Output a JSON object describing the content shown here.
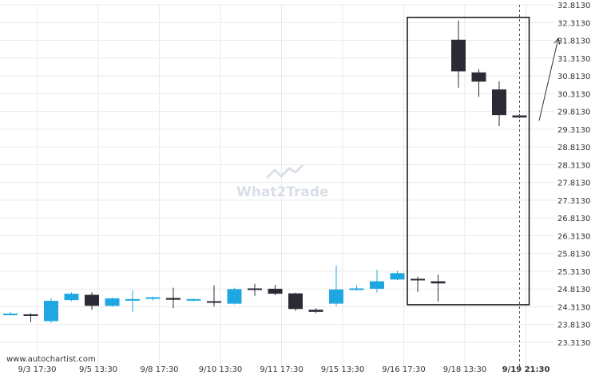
{
  "colors": {
    "bull": "#1ea7e1",
    "bear": "#2b2b36",
    "grid": "#e9e9e9",
    "text": "#333333",
    "box": "#111111",
    "watermark": "#d9dfe6"
  },
  "watermark": {
    "text_a": "What",
    "text_b": "2",
    "text_c": "Trade"
  },
  "source_text": "www.autochartist.com",
  "chart_data": {
    "type": "candlestick",
    "title": "",
    "y_ticks": [
      "32.8130",
      "32.3130",
      "31.8130",
      "31.3130",
      "30.8130",
      "30.3130",
      "29.8130",
      "29.3130",
      "28.8130",
      "28.3130",
      "27.8130",
      "27.3130",
      "26.8130",
      "26.3130",
      "25.8130",
      "25.3130",
      "24.8130",
      "24.3130",
      "23.8130",
      "23.3130"
    ],
    "ylim": [
      23.313,
      32.813
    ],
    "x_ticks": [
      {
        "label": "9/3 17:30",
        "index": 1
      },
      {
        "label": "9/5 13:30",
        "index": 4
      },
      {
        "label": "9/8 17:30",
        "index": 7
      },
      {
        "label": "9/10 13:30",
        "index": 10
      },
      {
        "label": "9/11 17:30",
        "index": 13
      },
      {
        "label": "9/15 13:30",
        "index": 16
      },
      {
        "label": "9/16 17:30",
        "index": 19
      },
      {
        "label": "9/18 13:30",
        "index": 22
      },
      {
        "label": "9/19 21:30",
        "index": 25,
        "bold": true
      }
    ],
    "candles": [
      {
        "o": 24.12,
        "h": 24.17,
        "l": 24.07,
        "c": 24.12
      },
      {
        "o": 24.1,
        "h": 24.13,
        "l": 23.88,
        "c": 24.06
      },
      {
        "o": 23.91,
        "h": 24.55,
        "l": 23.86,
        "c": 24.48
      },
      {
        "o": 24.5,
        "h": 24.72,
        "l": 24.47,
        "c": 24.68
      },
      {
        "o": 24.65,
        "h": 24.72,
        "l": 24.23,
        "c": 24.34
      },
      {
        "o": 24.34,
        "h": 24.58,
        "l": 24.32,
        "c": 24.55
      },
      {
        "o": 24.53,
        "h": 24.77,
        "l": 24.16,
        "c": 24.53
      },
      {
        "o": 24.54,
        "h": 24.6,
        "l": 24.49,
        "c": 24.58
      },
      {
        "o": 24.56,
        "h": 24.85,
        "l": 24.27,
        "c": 24.51
      },
      {
        "o": 24.52,
        "h": 24.54,
        "l": 24.46,
        "c": 24.53
      },
      {
        "o": 24.47,
        "h": 24.92,
        "l": 24.32,
        "c": 24.44
      },
      {
        "o": 24.4,
        "h": 24.85,
        "l": 24.38,
        "c": 24.81
      },
      {
        "o": 24.83,
        "h": 24.96,
        "l": 24.62,
        "c": 24.81
      },
      {
        "o": 24.82,
        "h": 24.93,
        "l": 24.64,
        "c": 24.68
      },
      {
        "o": 24.69,
        "h": 24.71,
        "l": 24.2,
        "c": 24.25
      },
      {
        "o": 24.23,
        "h": 24.27,
        "l": 24.13,
        "c": 24.17
      },
      {
        "o": 24.4,
        "h": 25.47,
        "l": 24.33,
        "c": 24.8
      },
      {
        "o": 24.82,
        "h": 24.92,
        "l": 24.77,
        "c": 24.83
      },
      {
        "o": 24.82,
        "h": 25.35,
        "l": 24.71,
        "c": 25.03
      },
      {
        "o": 25.08,
        "h": 25.33,
        "l": 25.06,
        "c": 25.26
      },
      {
        "o": 25.1,
        "h": 25.16,
        "l": 24.73,
        "c": 25.07
      },
      {
        "o": 25.03,
        "h": 25.22,
        "l": 24.46,
        "c": 24.97
      },
      {
        "o": 31.83,
        "h": 32.37,
        "l": 30.48,
        "c": 30.94
      },
      {
        "o": 30.91,
        "h": 31.0,
        "l": 30.22,
        "c": 30.65
      },
      {
        "o": 30.43,
        "h": 30.66,
        "l": 29.4,
        "c": 29.71
      },
      {
        "o": 29.7,
        "h": 29.74,
        "l": 29.62,
        "c": 29.64
      }
    ],
    "pattern_box": {
      "start_index": 20,
      "end_index": 25,
      "top": 32.46,
      "bottom": 24.37
    },
    "projection": {
      "from_price": 29.55,
      "to_price": 31.87
    },
    "current_time_index": 25,
    "grid": true
  }
}
